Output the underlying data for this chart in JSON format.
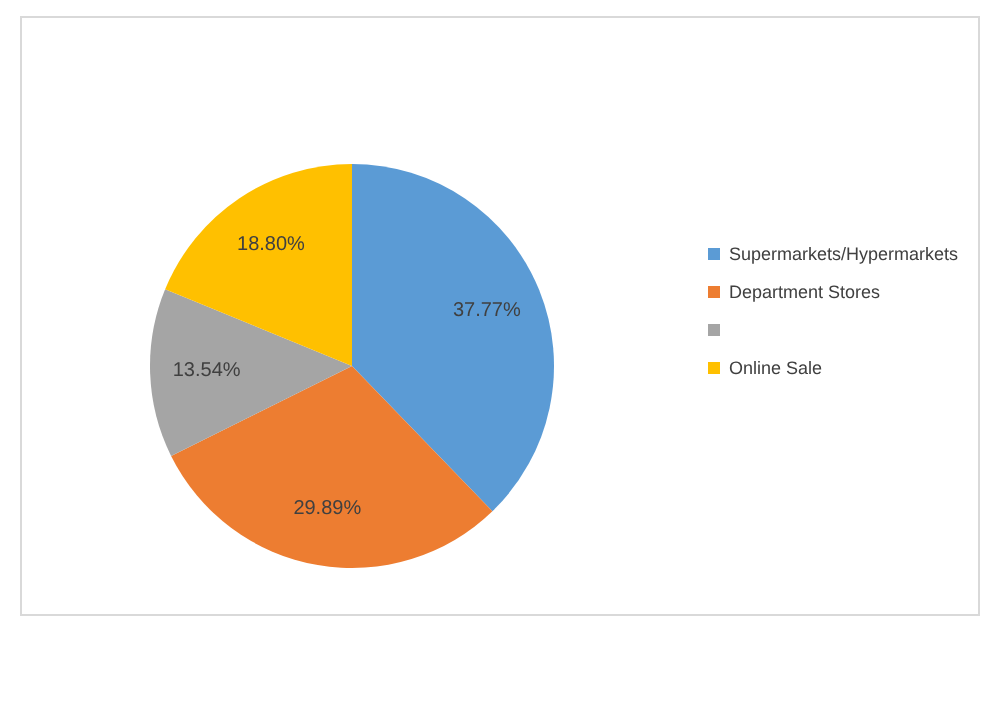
{
  "chart_data": {
    "type": "pie",
    "categories": [
      "Supermarkets/Hypermarkets",
      "Department Stores",
      null,
      "Online Sale"
    ],
    "values": [
      37.77,
      29.89,
      13.54,
      18.8
    ],
    "colors": [
      "#5b9bd5",
      "#ed7d31",
      "#a5a5a5",
      "#ffc000"
    ],
    "value_labels": [
      "37.77%",
      "29.89%",
      "13.54%",
      "18.80%"
    ],
    "legend": "right"
  }
}
